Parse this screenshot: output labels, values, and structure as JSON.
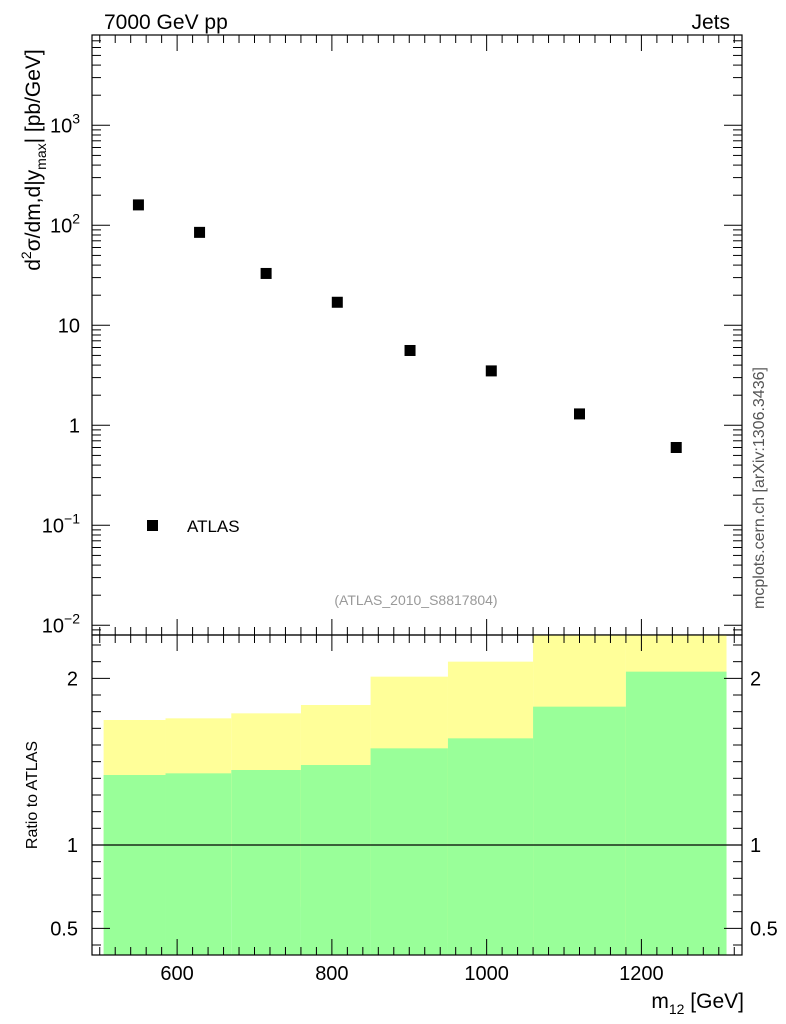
{
  "header": {
    "left_label": "7000 GeV pp",
    "right_label": "Jets"
  },
  "watermark": "mcplots.cern.ch [arXiv:1306.3436]",
  "colors": {
    "outer_band": "#ffff99",
    "inner_band": "#99ff99",
    "marker": "#000000",
    "reference_text": "#999999"
  },
  "chart_data": [
    {
      "type": "scatter",
      "yscale": "log",
      "ylabel_parts": {
        "a": "d",
        "a_sup": "2",
        "b": "σ/dm,d|y",
        "b_sub": "max",
        "c": "| [pb/GeV]"
      },
      "xlim": [
        490,
        1330
      ],
      "ylim": [
        0.008,
        8000
      ],
      "y_ticks": [
        {
          "value": 0.01,
          "base": "10",
          "exp": "−2"
        },
        {
          "value": 0.1,
          "base": "10",
          "exp": "−1"
        },
        {
          "value": 1,
          "base": "1",
          "exp": ""
        },
        {
          "value": 10,
          "base": "10",
          "exp": ""
        },
        {
          "value": 100,
          "base": "10",
          "exp": "2"
        },
        {
          "value": 1000,
          "base": "10",
          "exp": "3"
        }
      ],
      "series": [
        {
          "name": "ATLAS",
          "x": [
            550,
            629,
            715,
            807,
            901,
            1006,
            1120,
            1245
          ],
          "y": [
            160,
            85,
            33,
            17,
            5.6,
            3.5,
            1.3,
            0.6
          ]
        }
      ],
      "legend": {
        "entries": [
          "ATLAS"
        ],
        "location": "lower-left"
      },
      "annotation": "(ATLAS_2010_S8817804)"
    },
    {
      "type": "area",
      "ylabel": "Ratio to ATLAS",
      "xlabel_parts": {
        "m": "m",
        "sub": "12",
        "unit": " [GeV]"
      },
      "xlim": [
        490,
        1330
      ],
      "ylim": [
        0.34,
        2.26
      ],
      "x_ticks": [
        600,
        800,
        1000,
        1200
      ],
      "y_ticks": [
        0.5,
        1,
        2
      ],
      "y_tick_labels": [
        "0.5",
        "1",
        "2"
      ],
      "reference_line": 1,
      "bins": [
        {
          "lo": 505,
          "hi": 585,
          "outer_lo": 0.7,
          "outer_hi": 1.75,
          "inner_lo": 0.34,
          "inner_hi": 1.42
        },
        {
          "lo": 585,
          "hi": 670,
          "outer_lo": 0.69,
          "outer_hi": 1.76,
          "inner_lo": 0.34,
          "inner_hi": 1.43
        },
        {
          "lo": 670,
          "hi": 760,
          "outer_lo": 0.67,
          "outer_hi": 1.79,
          "inner_lo": 0.34,
          "inner_hi": 1.45
        },
        {
          "lo": 760,
          "hi": 850,
          "outer_lo": 0.63,
          "outer_hi": 1.84,
          "inner_lo": 0.34,
          "inner_hi": 1.48
        },
        {
          "lo": 850,
          "hi": 950,
          "outer_lo": 0.49,
          "outer_hi": 2.01,
          "inner_lo": 0.34,
          "inner_hi": 1.58
        },
        {
          "lo": 950,
          "hi": 1060,
          "outer_lo": 0.41,
          "outer_hi": 2.1,
          "inner_lo": 0.34,
          "inner_hi": 1.64
        },
        {
          "lo": 1060,
          "hi": 1180,
          "outer_lo": 0.34,
          "outer_hi": 2.26,
          "inner_lo": 0.34,
          "inner_hi": 1.83
        },
        {
          "lo": 1180,
          "hi": 1310,
          "outer_lo": 0.34,
          "outer_hi": 2.26,
          "inner_lo": 0.34,
          "inner_hi": 2.04
        }
      ]
    }
  ]
}
